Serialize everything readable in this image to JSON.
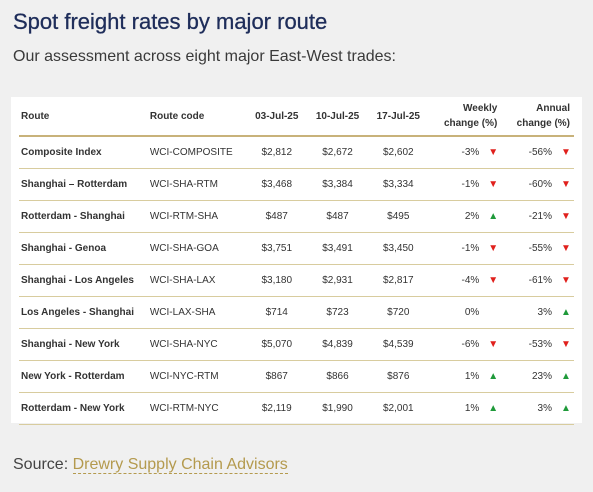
{
  "title": "Spot freight rates by major route",
  "subtitle": "Our assessment across eight major East-West trades:",
  "table": {
    "headers": {
      "route": "Route",
      "code": "Route code",
      "d1": "03-Jul-25",
      "d2": "10-Jul-25",
      "d3": "17-Jul-25",
      "weekly_1": "Weekly",
      "weekly_2": "change (%)",
      "annual_1": "Annual",
      "annual_2": "change (%)"
    },
    "rows": [
      {
        "route": "Composite Index",
        "code": "WCI-COMPOSITE",
        "d1": "$2,812",
        "d2": "$2,672",
        "d3": "$2,602",
        "weekly": "-3%",
        "weekly_dir": "down",
        "annual": "-56%",
        "annual_dir": "down"
      },
      {
        "route": "Shanghai – Rotterdam",
        "code": "WCI-SHA-RTM",
        "d1": "$3,468",
        "d2": "$3,384",
        "d3": "$3,334",
        "weekly": "-1%",
        "weekly_dir": "down",
        "annual": "-60%",
        "annual_dir": "down"
      },
      {
        "route": "Rotterdam - Shanghai",
        "code": "WCI-RTM-SHA",
        "d1": "$487",
        "d2": "$487",
        "d3": "$495",
        "weekly": "2%",
        "weekly_dir": "up",
        "annual": "-21%",
        "annual_dir": "down"
      },
      {
        "route": "Shanghai - Genoa",
        "code": "WCI-SHA-GOA",
        "d1": "$3,751",
        "d2": "$3,491",
        "d3": "$3,450",
        "weekly": "-1%",
        "weekly_dir": "down",
        "annual": "-55%",
        "annual_dir": "down"
      },
      {
        "route": "Shanghai - Los Angeles",
        "code": "WCI-SHA-LAX",
        "d1": "$3,180",
        "d2": "$2,931",
        "d3": "$2,817",
        "weekly": "-4%",
        "weekly_dir": "down",
        "annual": "-61%",
        "annual_dir": "down"
      },
      {
        "route": "Los Angeles - Shanghai",
        "code": "WCI-LAX-SHA",
        "d1": "$714",
        "d2": "$723",
        "d3": "$720",
        "weekly": "0%",
        "weekly_dir": "none",
        "annual": "3%",
        "annual_dir": "up"
      },
      {
        "route": "Shanghai - New York",
        "code": "WCI-SHA-NYC",
        "d1": "$5,070",
        "d2": "$4,839",
        "d3": "$4,539",
        "weekly": "-6%",
        "weekly_dir": "down",
        "annual": "-53%",
        "annual_dir": "down"
      },
      {
        "route": "New York - Rotterdam",
        "code": "WCI-NYC-RTM",
        "d1": "$867",
        "d2": "$866",
        "d3": "$876",
        "weekly": "1%",
        "weekly_dir": "up",
        "annual": "23%",
        "annual_dir": "up"
      },
      {
        "route": "Rotterdam - New York",
        "code": "WCI-RTM-NYC",
        "d1": "$2,119",
        "d2": "$1,990",
        "d3": "$2,001",
        "weekly": "1%",
        "weekly_dir": "up",
        "annual": "3%",
        "annual_dir": "up"
      }
    ]
  },
  "source": {
    "label": "Source:",
    "link_text": "Drewry Supply Chain Advisors"
  },
  "colors": {
    "title": "#1e2d5a",
    "down": "#e0201c",
    "up": "#1f9a3a",
    "rule": "#c8b27a",
    "link": "#b49a4e"
  },
  "icons": {
    "down": "triangle-down-icon",
    "up": "triangle-up-icon"
  }
}
